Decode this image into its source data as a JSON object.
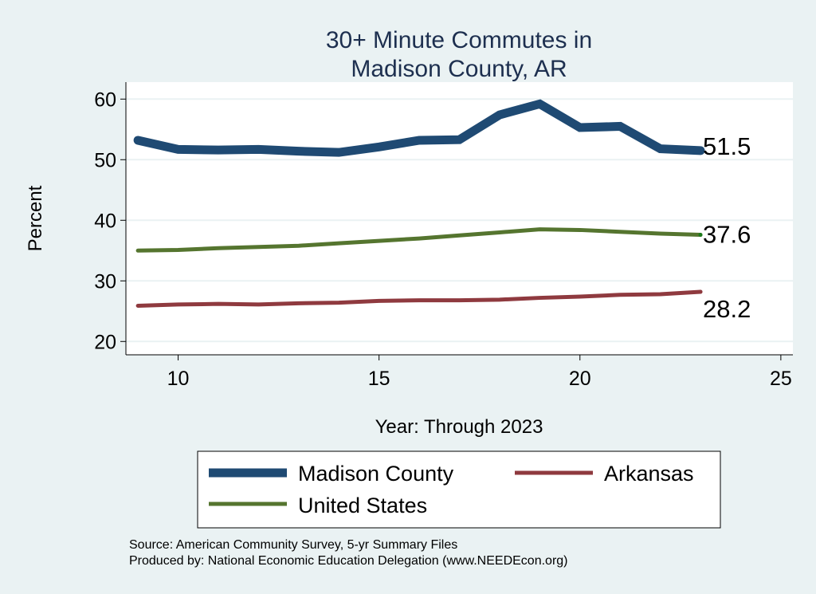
{
  "chart_data": {
    "type": "line",
    "title": [
      "30+ Minute Commutes in",
      "Madison County, AR"
    ],
    "xlabel": "Year: Through 2023",
    "ylabel": "Percent",
    "xlim": [
      8.7,
      25.3
    ],
    "ylim": [
      17.8,
      62.8
    ],
    "xticks": [
      10,
      15,
      20,
      25
    ],
    "yticks": [
      20,
      30,
      40,
      50,
      60
    ],
    "grid": true,
    "x": [
      9,
      10,
      11,
      12,
      13,
      14,
      15,
      16,
      17,
      18,
      19,
      20,
      21,
      22,
      23
    ],
    "series": [
      {
        "name": "Madison County",
        "color": "#1f4a73",
        "width": 11,
        "values": [
          53.2,
          51.7,
          51.6,
          51.7,
          51.4,
          51.2,
          52.1,
          53.2,
          53.3,
          57.4,
          59.2,
          55.3,
          55.5,
          51.8,
          51.5
        ],
        "end_label": "51.5"
      },
      {
        "name": "Arkansas",
        "color": "#8f3a3f",
        "width": 5,
        "values": [
          25.9,
          26.1,
          26.2,
          26.1,
          26.3,
          26.4,
          26.7,
          26.8,
          26.8,
          26.9,
          27.2,
          27.4,
          27.7,
          27.8,
          28.2
        ],
        "end_label": "28.2"
      },
      {
        "name": "United States",
        "color": "#55752f",
        "width": 5,
        "values": [
          35.0,
          35.1,
          35.4,
          35.6,
          35.8,
          36.2,
          36.6,
          37.0,
          37.5,
          38.0,
          38.5,
          38.4,
          38.1,
          37.8,
          37.6
        ],
        "end_label": "37.6"
      }
    ],
    "legend_position": "bottom",
    "notes": [
      "Source: American Community Survey, 5-yr Summary Files",
      "Produced by: National Economic Education Delegation (www.NEEDEcon.org)"
    ]
  },
  "colors": {
    "background": "#eaf2f3",
    "title": "#1d2f4f",
    "grid": "#eaf2f3"
  }
}
